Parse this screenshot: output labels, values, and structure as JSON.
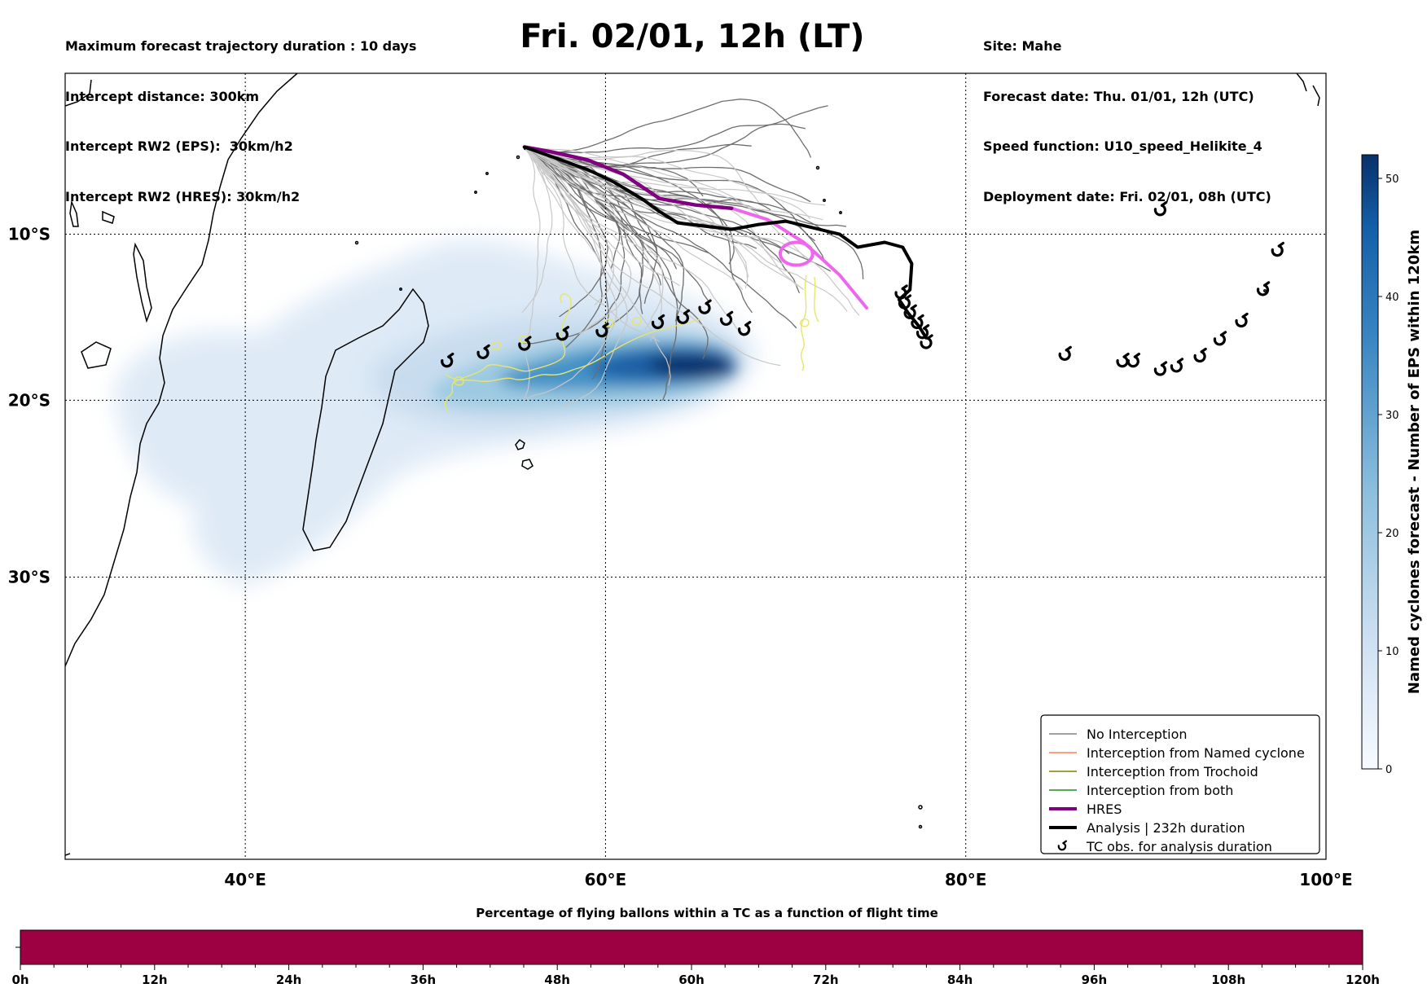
{
  "header_left": [
    "Maximum forecast trajectory duration : 10 days",
    "Intercept distance: 300km",
    "Intercept RW2 (EPS):  30km/h2",
    "Intercept RW2 (HRES): 30km/h2"
  ],
  "header_right": [
    "Site: Mahe",
    "Forecast date: Thu. 01/01, 12h (UTC)",
    "Speed function: U10_speed_Helikite_4",
    "Deployment date: Fri. 02/01, 08h (UTC)"
  ],
  "title": "Fri. 02/01, 12h (LT)",
  "map": {
    "lon_range": [
      30,
      100
    ],
    "lat_range": [
      -44,
      0
    ],
    "lon_ticks": [
      {
        "value": 40,
        "label": "40°E"
      },
      {
        "value": 60,
        "label": "60°E"
      },
      {
        "value": 80,
        "label": "80°E"
      },
      {
        "value": 100,
        "label": "100°E"
      }
    ],
    "lat_ticks": [
      {
        "value": -10,
        "label": "10°S"
      },
      {
        "value": -20,
        "label": "20°S"
      },
      {
        "value": -30,
        "label": "30°S"
      }
    ],
    "grid": "dotted",
    "launch_site": {
      "lon": 55.5,
      "lat": -4.6
    },
    "hres_track": [
      [
        55.5,
        -4.6
      ],
      [
        57,
        -4.9
      ],
      [
        59,
        -5.4
      ],
      [
        61,
        -6.3
      ],
      [
        63,
        -7.8
      ],
      [
        65,
        -8.2
      ],
      [
        67,
        -8.4
      ],
      [
        69,
        -9.1
      ],
      [
        71,
        -10.5
      ],
      [
        73,
        -12.5
      ],
      [
        74.5,
        -14.5
      ]
    ],
    "hres_loop": {
      "lon": 70.6,
      "lat": -11.2,
      "r": 0.9
    },
    "analysis_track": [
      [
        55.5,
        -4.6
      ],
      [
        57,
        -5.2
      ],
      [
        59,
        -6.0
      ],
      [
        60.5,
        -6.8
      ],
      [
        62,
        -7.8
      ],
      [
        63,
        -8.6
      ],
      [
        64,
        -9.3
      ],
      [
        65.5,
        -9.5
      ],
      [
        67,
        -9.7
      ],
      [
        68.5,
        -9.4
      ],
      [
        70,
        -9.2
      ],
      [
        71.5,
        -9.6
      ],
      [
        73,
        -10.0
      ],
      [
        74,
        -10.8
      ],
      [
        75.5,
        -10.5
      ],
      [
        76.5,
        -10.8
      ],
      [
        77,
        -11.8
      ],
      [
        76.9,
        -13.4
      ],
      [
        76.3,
        -14.0
      ],
      [
        76.8,
        -14.8
      ],
      [
        77.4,
        -15.6
      ],
      [
        77.8,
        -16.3
      ]
    ],
    "tc_obs": [
      [
        51.2,
        -17.7
      ],
      [
        53.2,
        -17.2
      ],
      [
        55.5,
        -16.7
      ],
      [
        57.6,
        -16.1
      ],
      [
        59.8,
        -15.9
      ],
      [
        62.9,
        -15.4
      ],
      [
        64.3,
        -15.1
      ],
      [
        65.5,
        -14.5
      ],
      [
        66.7,
        -15.2
      ],
      [
        67.7,
        -15.8
      ],
      [
        76.4,
        -13.6
      ],
      [
        76.6,
        -14.2
      ],
      [
        76.9,
        -14.8
      ],
      [
        77.3,
        -15.4
      ],
      [
        77.6,
        -16.0
      ],
      [
        77.8,
        -16.6
      ],
      [
        85.5,
        -17.3
      ],
      [
        88.7,
        -17.7
      ],
      [
        89.3,
        -17.7
      ],
      [
        90.8,
        -18.2
      ],
      [
        91.7,
        -18.0
      ],
      [
        93,
        -17.4
      ],
      [
        94.1,
        -16.4
      ],
      [
        95.3,
        -15.3
      ],
      [
        96.5,
        -13.4
      ],
      [
        97.3,
        -11.0
      ],
      [
        90.8,
        -8.5
      ]
    ]
  },
  "colorbar_right": {
    "label": "Named cyclones forecast - Number of EPS within 120km",
    "min": 0,
    "max": 52,
    "ticks": [
      0,
      10,
      20,
      30,
      40,
      50
    ],
    "color_low": "#f2f7fc",
    "color_high": "#08306b"
  },
  "legend": {
    "position": "lower-right",
    "items": [
      {
        "label": "No Interception",
        "color": "#808080",
        "style": "thin"
      },
      {
        "label": "Interception from Named cyclone",
        "color": "#ff7f50",
        "style": "thin"
      },
      {
        "label": "Interception from Trochoid",
        "color": "#808000",
        "style": "thin"
      },
      {
        "label": "Interception from both",
        "color": "#228b22",
        "style": "thin"
      },
      {
        "label": "HRES",
        "color": "#800080",
        "style": "thick"
      },
      {
        "label": "Analysis | 232h duration",
        "color": "#000000",
        "style": "thick"
      },
      {
        "label": "TC obs. for analysis duration",
        "color": "#000000",
        "style": "symbol",
        "icon": "cyclone-icon"
      }
    ]
  },
  "bottom_bar": {
    "title": "Percentage of flying ballons within a TC as a function of flight time",
    "color": "#9e0142",
    "ticks": [
      "0h",
      "12h",
      "24h",
      "36h",
      "48h",
      "60h",
      "72h",
      "84h",
      "96h",
      "108h",
      "120h"
    ]
  }
}
